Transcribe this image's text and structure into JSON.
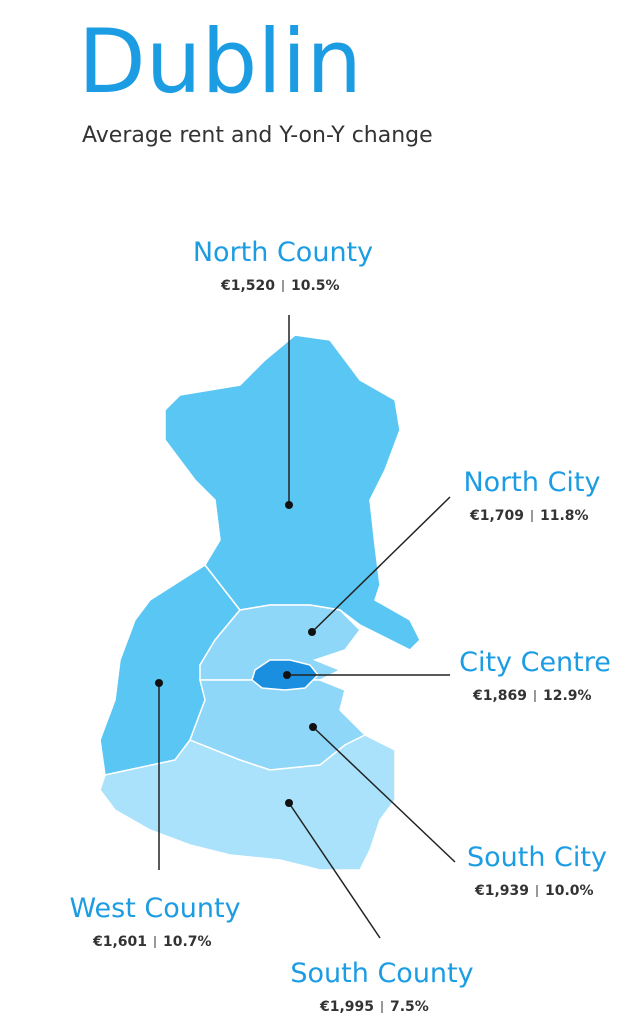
{
  "header": {
    "title": "Dublin",
    "subtitle": "Average rent and Y-on-Y change"
  },
  "regions": [
    {
      "name": "North County",
      "rent": "€1,520",
      "change": "10.5%"
    },
    {
      "name": "North City",
      "rent": "€1,709",
      "change": "11.8%"
    },
    {
      "name": "City Centre",
      "rent": "€1,869",
      "change": "12.9%"
    },
    {
      "name": "South City",
      "rent": "€1,939",
      "change": "10.0%"
    },
    {
      "name": "West County",
      "rent": "€1,601",
      "change": "10.7%"
    },
    {
      "name": "South County",
      "rent": "€1,995",
      "change": "7.5%"
    }
  ]
}
